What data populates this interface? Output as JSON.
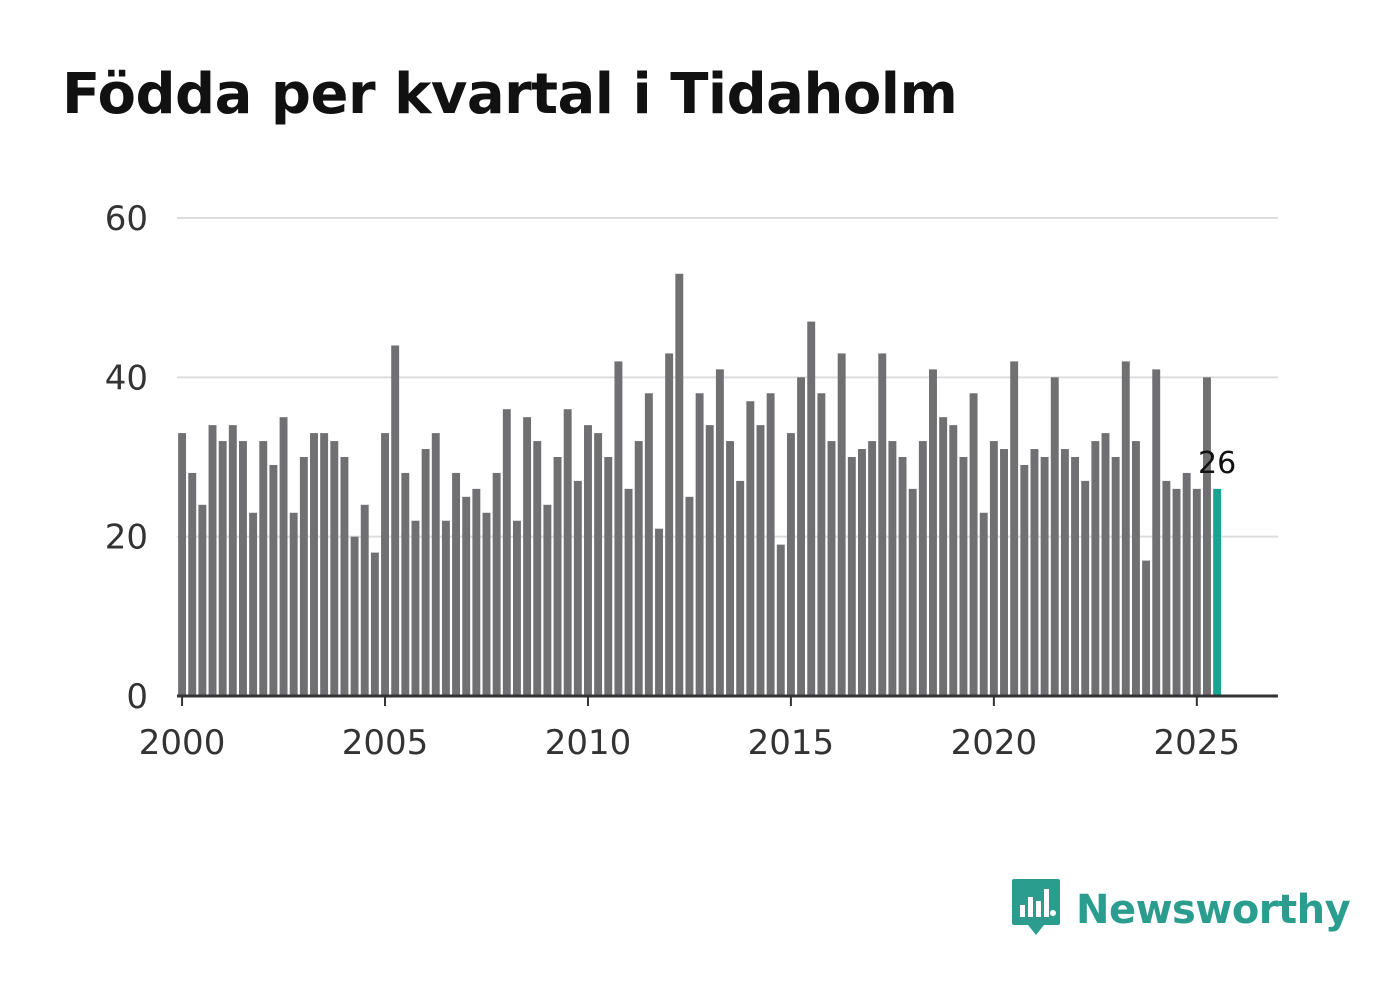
{
  "title": "Födda per kvartal i Tidaholm",
  "brand": {
    "name": "Newsworthy",
    "icon": "newsworthy-logo-icon"
  },
  "colors": {
    "bar": "#707072",
    "highlight": "#1aa391",
    "grid": "#dddddd",
    "axis": "#333333",
    "brand": "#2a9d8f"
  },
  "chart_data": {
    "type": "bar",
    "title": "Födda per kvartal i Tidaholm",
    "xlabel": "",
    "ylabel": "",
    "ylim": [
      0,
      60
    ],
    "yticks": [
      0,
      20,
      40,
      60
    ],
    "xticks": [
      2000,
      2005,
      2010,
      2015,
      2020,
      2025
    ],
    "xlim": [
      1999.875,
      2027.0
    ],
    "grid": true,
    "start": {
      "year": 2000,
      "quarter": 1
    },
    "values": [
      33,
      28,
      24,
      34,
      32,
      34,
      32,
      23,
      32,
      29,
      35,
      23,
      30,
      33,
      33,
      32,
      30,
      20,
      24,
      18,
      33,
      44,
      28,
      22,
      31,
      33,
      22,
      28,
      25,
      26,
      23,
      28,
      36,
      22,
      35,
      32,
      24,
      30,
      36,
      27,
      34,
      33,
      30,
      42,
      26,
      32,
      38,
      21,
      43,
      53,
      25,
      38,
      34,
      41,
      32,
      27,
      37,
      34,
      38,
      19,
      33,
      40,
      47,
      38,
      32,
      43,
      30,
      31,
      32,
      43,
      32,
      30,
      26,
      32,
      41,
      35,
      34,
      30,
      38,
      23,
      32,
      31,
      42,
      29,
      31,
      30,
      40,
      31,
      30,
      27,
      32,
      33,
      30,
      42,
      32,
      17,
      41,
      27,
      26,
      28,
      26,
      40,
      26
    ],
    "highlight_last": true,
    "annotation": "26"
  }
}
